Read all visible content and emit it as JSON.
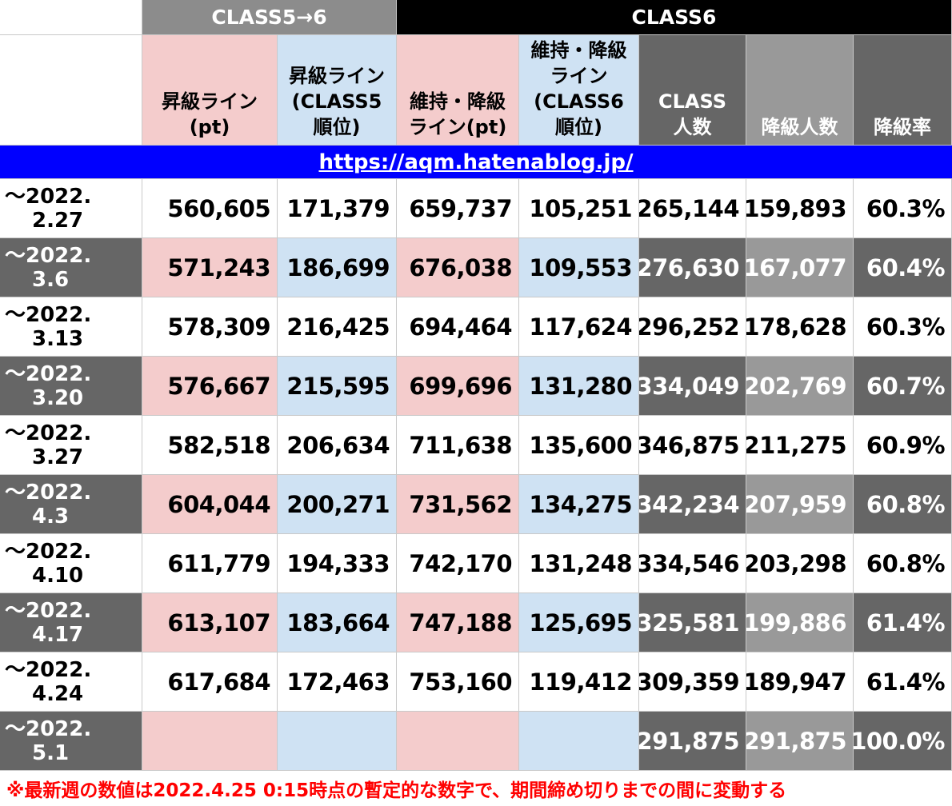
{
  "groups": {
    "class5to6": "CLASS5→6",
    "class6": "CLASS6"
  },
  "headers": {
    "promotion_pt": [
      "昇級ライン",
      "(pt)"
    ],
    "promotion_rank": [
      "昇級ライン",
      "(CLASS5",
      "順位)"
    ],
    "keep_pt": [
      "維持・降級",
      "ライン(pt)"
    ],
    "keep_rank": [
      "維持・降級",
      "ライン",
      "(CLASS6",
      "順位)"
    ],
    "class_count": [
      "CLASS",
      "人数"
    ],
    "demote_count": [
      "降級人数"
    ],
    "demote_rate": [
      "降級率"
    ]
  },
  "url": "https://aqm.hatenablog.jp/",
  "rows": [
    {
      "date": [
        "〜2022.",
        "2.27"
      ],
      "promotion_pt": "560,605",
      "promotion_rank": "171,379",
      "keep_pt": "659,737",
      "keep_rank": "105,251",
      "class_count": "265,144",
      "demote_count": "159,893",
      "demote_rate": "60.3%"
    },
    {
      "date": [
        "〜2022.",
        "3.6"
      ],
      "promotion_pt": "571,243",
      "promotion_rank": "186,699",
      "keep_pt": "676,038",
      "keep_rank": "109,553",
      "class_count": "276,630",
      "demote_count": "167,077",
      "demote_rate": "60.4%"
    },
    {
      "date": [
        "〜2022.",
        "3.13"
      ],
      "promotion_pt": "578,309",
      "promotion_rank": "216,425",
      "keep_pt": "694,464",
      "keep_rank": "117,624",
      "class_count": "296,252",
      "demote_count": "178,628",
      "demote_rate": "60.3%"
    },
    {
      "date": [
        "〜2022.",
        "3.20"
      ],
      "promotion_pt": "576,667",
      "promotion_rank": "215,595",
      "keep_pt": "699,696",
      "keep_rank": "131,280",
      "class_count": "334,049",
      "demote_count": "202,769",
      "demote_rate": "60.7%"
    },
    {
      "date": [
        "〜2022.",
        "3.27"
      ],
      "promotion_pt": "582,518",
      "promotion_rank": "206,634",
      "keep_pt": "711,638",
      "keep_rank": "135,600",
      "class_count": "346,875",
      "demote_count": "211,275",
      "demote_rate": "60.9%"
    },
    {
      "date": [
        "〜2022.",
        "4.3"
      ],
      "promotion_pt": "604,044",
      "promotion_rank": "200,271",
      "keep_pt": "731,562",
      "keep_rank": "134,275",
      "class_count": "342,234",
      "demote_count": "207,959",
      "demote_rate": "60.8%"
    },
    {
      "date": [
        "〜2022.",
        "4.10"
      ],
      "promotion_pt": "611,779",
      "promotion_rank": "194,333",
      "keep_pt": "742,170",
      "keep_rank": "131,248",
      "class_count": "334,546",
      "demote_count": "203,298",
      "demote_rate": "60.8%"
    },
    {
      "date": [
        "〜2022.",
        "4.17"
      ],
      "promotion_pt": "613,107",
      "promotion_rank": "183,664",
      "keep_pt": "747,188",
      "keep_rank": "125,695",
      "class_count": "325,581",
      "demote_count": "199,886",
      "demote_rate": "61.4%"
    },
    {
      "date": [
        "〜2022.",
        "4.24"
      ],
      "promotion_pt": "617,684",
      "promotion_rank": "172,463",
      "keep_pt": "753,160",
      "keep_rank": "119,412",
      "class_count": "309,359",
      "demote_count": "189,947",
      "demote_rate": "61.4%"
    },
    {
      "date": [
        "〜2022.",
        "5.1"
      ],
      "promotion_pt": "",
      "promotion_rank": "",
      "keep_pt": "",
      "keep_rank": "",
      "class_count": "291,875",
      "demote_count": "291,875",
      "demote_rate": "100.0%"
    }
  ],
  "footnote": "※最新週の数値は2022.4.25 0:15時点の暫定的な数字で、期間締め切りまでの間に変動する",
  "colors": {
    "pink": "#f4cccc",
    "blue": "#cfe2f3",
    "dark_gray": "#666666",
    "mid_gray": "#999999",
    "group5_header": "#8c8c8c",
    "group6_header": "#000000",
    "url_bar": "#0000ff",
    "note": "#ff0000"
  }
}
